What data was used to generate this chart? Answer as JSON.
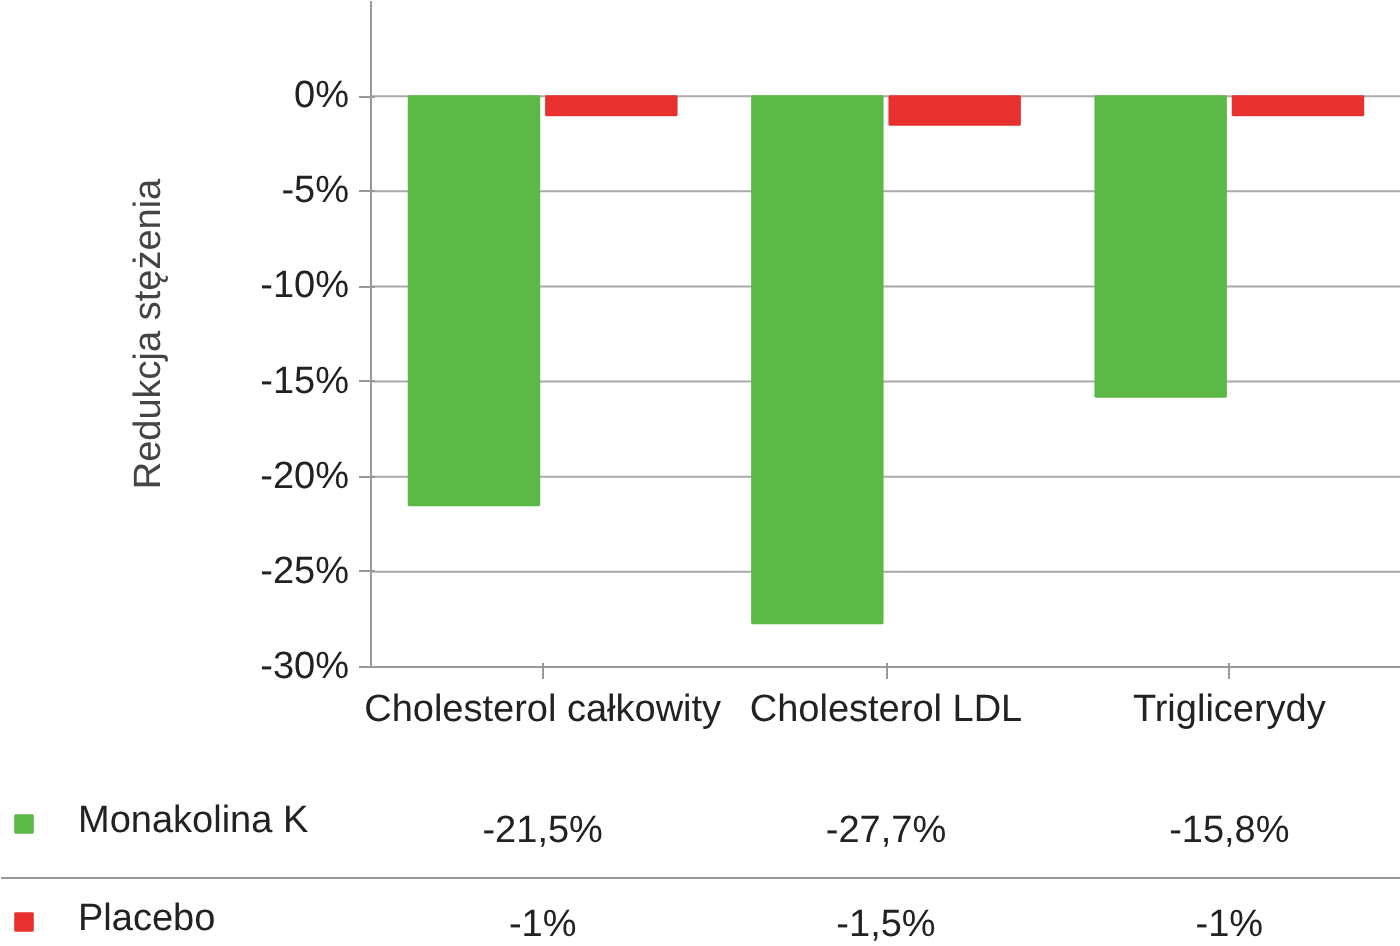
{
  "chart_data": {
    "type": "bar",
    "ylabel": "Redukcja stężenia",
    "categories": [
      "Cholesterol całkowity",
      "Cholesterol LDL",
      "Triglicerydy"
    ],
    "series": [
      {
        "name": "Monakolina K",
        "color": "#5cb947",
        "values": [
          -21.5,
          -27.7,
          -15.8
        ],
        "value_labels": [
          "-21,5%",
          "-27,7%",
          "-15,8%"
        ]
      },
      {
        "name": "Placebo",
        "color": "#e8312f",
        "values": [
          -1,
          -1.5,
          -1
        ],
        "value_labels": [
          "-1%",
          "-1,5%",
          "-1%"
        ]
      }
    ],
    "ylim": [
      -30,
      5
    ],
    "yticks": [
      {
        "value": -30,
        "label": "-30%"
      },
      {
        "value": -25,
        "label": "-25%"
      },
      {
        "value": -20,
        "label": "-20%"
      },
      {
        "value": -15,
        "label": "-15%"
      },
      {
        "value": -10,
        "label": "-10%"
      },
      {
        "value": -5,
        "label": "-5%"
      },
      {
        "value": 0,
        "label": "0%"
      }
    ],
    "grid": "y",
    "legend": "bottom left"
  }
}
